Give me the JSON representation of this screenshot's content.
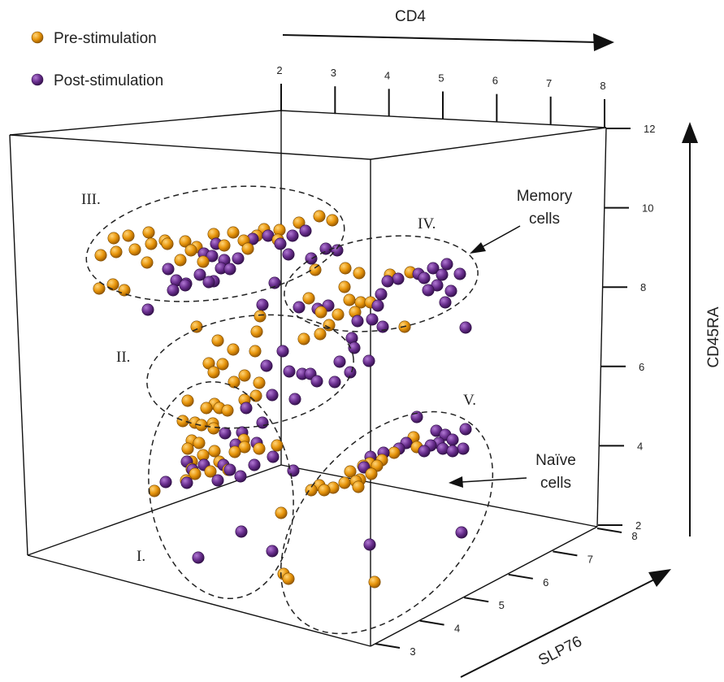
{
  "chart_data": {
    "type": "scatter3d",
    "legend": {
      "placement": "top-left",
      "entries": [
        {
          "name": "Pre-stimulation",
          "color": "#e8960c"
        },
        {
          "name": "Post-stimulation",
          "color": "#6a2f8f"
        }
      ]
    },
    "axes": {
      "x": {
        "label": "CD4",
        "ticks": [
          "2",
          "3",
          "4",
          "5",
          "6",
          "7",
          "8"
        ],
        "range": [
          2,
          8
        ]
      },
      "y": {
        "label": "SLP76",
        "ticks": [
          "3",
          "4",
          "5",
          "6",
          "7",
          "8"
        ],
        "range": [
          3,
          8
        ]
      },
      "z": {
        "label": "CD45RA",
        "ticks": [
          "2",
          "4",
          "6",
          "8",
          "10",
          "12"
        ],
        "range": [
          2,
          12
        ]
      }
    },
    "clusters": [
      {
        "label": "I."
      },
      {
        "label": "II."
      },
      {
        "label": "III."
      },
      {
        "label": "IV."
      },
      {
        "label": "V."
      }
    ],
    "annotations": [
      {
        "line1": "Memory",
        "line2": "cells"
      },
      {
        "line1": "Naïve",
        "line2": "cells"
      }
    ],
    "series": [
      {
        "name": "Pre-stimulation",
        "color": "#e8960c",
        "points_screen": [
          [
            140,
            293
          ],
          [
            158,
            290
          ],
          [
            183,
            286
          ],
          [
            203,
            296
          ],
          [
            124,
            314
          ],
          [
            143,
            310
          ],
          [
            166,
            307
          ],
          [
            186,
            300
          ],
          [
            181,
            323
          ],
          [
            206,
            300
          ],
          [
            228,
            297
          ],
          [
            242,
            304
          ],
          [
            263,
            288
          ],
          [
            287,
            286
          ],
          [
            300,
            296
          ],
          [
            316,
            290
          ],
          [
            325,
            282
          ],
          [
            344,
            283
          ],
          [
            368,
            274
          ],
          [
            393,
            266
          ],
          [
            409,
            271
          ],
          [
            122,
            355
          ],
          [
            139,
            350
          ],
          [
            153,
            357
          ],
          [
            222,
            320
          ],
          [
            235,
            308
          ],
          [
            250,
            322
          ],
          [
            276,
            302
          ],
          [
            305,
            306
          ],
          [
            342,
            295
          ],
          [
            388,
            332
          ],
          [
            425,
            330
          ],
          [
            442,
            336
          ],
          [
            480,
            338
          ],
          [
            505,
            335
          ],
          [
            424,
            353
          ],
          [
            430,
            369
          ],
          [
            444,
            372
          ],
          [
            456,
            372
          ],
          [
            380,
            367
          ],
          [
            395,
            384
          ],
          [
            405,
            400
          ],
          [
            437,
            384
          ],
          [
            416,
            387
          ],
          [
            394,
            411
          ],
          [
            374,
            417
          ],
          [
            320,
            389
          ],
          [
            316,
            408
          ],
          [
            268,
            419
          ],
          [
            242,
            402
          ],
          [
            287,
            430
          ],
          [
            314,
            432
          ],
          [
            257,
            447
          ],
          [
            274,
            448
          ],
          [
            263,
            458
          ],
          [
            301,
            462
          ],
          [
            319,
            471
          ],
          [
            231,
            493
          ],
          [
            254,
            502
          ],
          [
            264,
            497
          ],
          [
            270,
            502
          ],
          [
            288,
            470
          ],
          [
            301,
            492
          ],
          [
            315,
            487
          ],
          [
            225,
            518
          ],
          [
            240,
            520
          ],
          [
            248,
            523
          ],
          [
            262,
            521
          ],
          [
            263,
            527
          ],
          [
            280,
            505
          ],
          [
            236,
            542
          ],
          [
            245,
            545
          ],
          [
            231,
            552
          ],
          [
            250,
            560
          ],
          [
            236,
            568
          ],
          [
            236,
            577
          ],
          [
            264,
            555
          ],
          [
            289,
            556
          ],
          [
            301,
            550
          ],
          [
            319,
            552
          ],
          [
            341,
            548
          ],
          [
            240,
            583
          ],
          [
            259,
            580
          ],
          [
            281,
            578
          ],
          [
            270,
            568
          ],
          [
            229,
            591
          ],
          [
            190,
            604
          ],
          [
            300,
            541
          ],
          [
            346,
            631
          ],
          [
            349,
            706
          ],
          [
            355,
            712
          ],
          [
            383,
            603
          ],
          [
            393,
            597
          ],
          [
            399,
            603
          ],
          [
            410,
            600
          ],
          [
            431,
            580
          ],
          [
            447,
            573
          ],
          [
            455,
            570
          ],
          [
            464,
            573
          ],
          [
            443,
            590
          ],
          [
            424,
            594
          ],
          [
            438,
            592
          ],
          [
            441,
            599
          ],
          [
            457,
            583
          ],
          [
            470,
            566
          ],
          [
            485,
            557
          ],
          [
            513,
            550
          ],
          [
            509,
            538
          ],
          [
            461,
            716
          ],
          [
            498,
            402
          ]
        ]
      },
      {
        "name": "Post-stimulation",
        "color": "#6a2f8f",
        "points_screen": [
          [
            207,
            331
          ],
          [
            217,
            345
          ],
          [
            229,
            349
          ],
          [
            246,
            338
          ],
          [
            263,
            346
          ],
          [
            272,
            330
          ],
          [
            276,
            320
          ],
          [
            293,
            318
          ],
          [
            311,
            294
          ],
          [
            330,
            290
          ],
          [
            345,
            300
          ],
          [
            360,
            290
          ],
          [
            376,
            284
          ],
          [
            251,
            312
          ],
          [
            261,
            315
          ],
          [
            266,
            300
          ],
          [
            213,
            357
          ],
          [
            228,
            351
          ],
          [
            257,
            347
          ],
          [
            283,
            331
          ],
          [
            355,
            313
          ],
          [
            383,
            318
          ],
          [
            401,
            306
          ],
          [
            415,
            308
          ],
          [
            182,
            381
          ],
          [
            338,
            348
          ],
          [
            323,
            375
          ],
          [
            368,
            378
          ],
          [
            391,
            380
          ],
          [
            404,
            376
          ],
          [
            469,
            362
          ],
          [
            465,
            376
          ],
          [
            458,
            393
          ],
          [
            477,
            346
          ],
          [
            490,
            343
          ],
          [
            515,
            337
          ],
          [
            522,
            342
          ],
          [
            533,
            330
          ],
          [
            544,
            338
          ],
          [
            550,
            325
          ],
          [
            538,
            351
          ],
          [
            527,
            357
          ],
          [
            548,
            372
          ],
          [
            555,
            358
          ],
          [
            566,
            337
          ],
          [
            573,
            403
          ],
          [
            471,
            402
          ],
          [
            440,
            395
          ],
          [
            433,
            416
          ],
          [
            436,
            428
          ],
          [
            454,
            444
          ],
          [
            412,
            470
          ],
          [
            390,
            469
          ],
          [
            372,
            460
          ],
          [
            328,
            450
          ],
          [
            335,
            486
          ],
          [
            303,
            502
          ],
          [
            323,
            520
          ],
          [
            298,
            532
          ],
          [
            316,
            545
          ],
          [
            336,
            562
          ],
          [
            361,
            579
          ],
          [
            230,
            568
          ],
          [
            237,
            578
          ],
          [
            251,
            572
          ],
          [
            275,
            572
          ],
          [
            283,
            578
          ],
          [
            296,
            586
          ],
          [
            313,
            572
          ],
          [
            230,
            594
          ],
          [
            268,
            591
          ],
          [
            204,
            593
          ],
          [
            297,
            654
          ],
          [
            244,
            686
          ],
          [
            335,
            678
          ],
          [
            455,
            670
          ],
          [
            568,
            655
          ],
          [
            513,
            513
          ],
          [
            500,
            545
          ],
          [
            491,
            552
          ],
          [
            472,
            557
          ],
          [
            456,
            562
          ],
          [
            448,
            575
          ],
          [
            537,
            530
          ],
          [
            548,
            535
          ],
          [
            557,
            541
          ],
          [
            573,
            528
          ],
          [
            557,
            555
          ],
          [
            570,
            552
          ],
          [
            540,
            545
          ],
          [
            545,
            552
          ],
          [
            530,
            548
          ],
          [
            522,
            555
          ],
          [
            348,
            432
          ],
          [
            418,
            445
          ],
          [
            431,
            458
          ],
          [
            382,
            460
          ],
          [
            356,
            457
          ],
          [
            363,
            491
          ],
          [
            277,
            533
          ],
          [
            290,
            547
          ]
        ]
      }
    ]
  }
}
